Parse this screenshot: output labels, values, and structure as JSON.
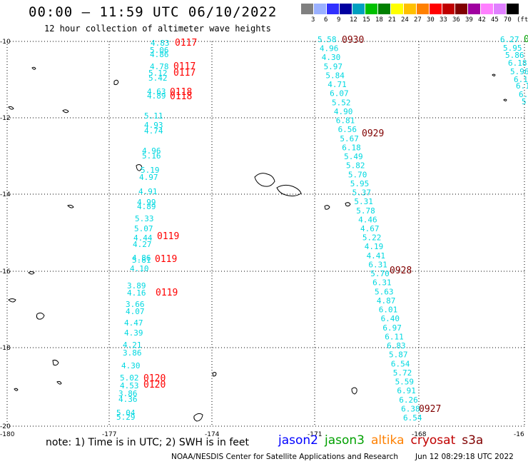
{
  "title": "00:00 – 11:59 UTC 06/10/2022",
  "subtitle": "12 hour collection of altimeter wave heights",
  "scale": {
    "colors": [
      "#808080",
      "#9ab0ff",
      "#3030ff",
      "#0000a0",
      "#00a0c0",
      "#00c000",
      "#008000",
      "#ffff00",
      "#ffc000",
      "#ff8000",
      "#ff0000",
      "#c00000",
      "#800000",
      "#a000a0",
      "#ff80ff",
      "#e080ff",
      "#000000"
    ],
    "labels": [
      "3",
      "6",
      "9",
      "12",
      "15",
      "18",
      "21",
      "24",
      "27",
      "30",
      "33",
      "36",
      "39",
      "42",
      "45",
      "70",
      "(ft)"
    ]
  },
  "map": {
    "lat_labels": [
      "-10",
      "-12",
      "-14",
      "-16",
      "-18",
      "-20"
    ],
    "lon_labels": [
      "-180",
      "-177",
      "-174",
      "-171",
      "-168",
      "-16"
    ]
  },
  "colors": {
    "cyan": "#00d8e0",
    "red": "#ff0000",
    "darkred": "#800000",
    "jason2": "#0000ff",
    "jason3": "#00a000",
    "altika": "#ff8000",
    "cryosat": "#c00000",
    "s3a": "#800000"
  },
  "tracks": {
    "west": [
      {
        "v": "4.83"
      },
      {
        "v": "5.06"
      },
      {
        "v": "4.86"
      },
      {
        "v": "4.78"
      },
      {
        "v": "5.12"
      },
      {
        "v": "5.42"
      },
      {
        "v": "4.63"
      },
      {
        "v": "4.89"
      },
      {
        "v": "5.11"
      },
      {
        "v": "4.93"
      },
      {
        "v": "4.74"
      },
      {
        "v": "4.96"
      },
      {
        "v": "5.16"
      },
      {
        "v": "5.19"
      },
      {
        "v": "4.97"
      },
      {
        "v": "4.91"
      },
      {
        "v": "4.99"
      },
      {
        "v": "4.89"
      },
      {
        "v": "5.33"
      },
      {
        "v": "5.07"
      },
      {
        "v": "4.44"
      },
      {
        "v": "4.27"
      },
      {
        "v": "4.86"
      },
      {
        "v": "5.81"
      },
      {
        "v": "4.10"
      },
      {
        "v": "3.89"
      },
      {
        "v": "4.16"
      },
      {
        "v": "3.66"
      },
      {
        "v": "4.07"
      },
      {
        "v": "4.47"
      },
      {
        "v": "4.39"
      },
      {
        "v": "4.21"
      },
      {
        "v": "3.86"
      },
      {
        "v": "4.30"
      },
      {
        "v": "5.02"
      },
      {
        "v": "4.53"
      },
      {
        "v": "3.86"
      },
      {
        "v": "4.36"
      },
      {
        "v": "5.04"
      },
      {
        "v": "5.29"
      }
    ],
    "middle": [
      {
        "v": "5.58"
      },
      {
        "v": "4.96"
      },
      {
        "v": "4.30"
      },
      {
        "v": "5.97"
      },
      {
        "v": "5.84"
      },
      {
        "v": "4.71"
      },
      {
        "v": "6.07"
      },
      {
        "v": "5.52"
      },
      {
        "v": "4.90"
      },
      {
        "v": "6.81"
      },
      {
        "v": "6.56"
      },
      {
        "v": "5.67"
      },
      {
        "v": "6.18"
      },
      {
        "v": "5.49"
      },
      {
        "v": "5.82"
      },
      {
        "v": "5.70"
      },
      {
        "v": "5.95"
      },
      {
        "v": "5.37"
      },
      {
        "v": "5.31"
      },
      {
        "v": "5.78"
      },
      {
        "v": "4.46"
      },
      {
        "v": "4.67"
      },
      {
        "v": "5.22"
      },
      {
        "v": "4.19"
      },
      {
        "v": "4.41"
      },
      {
        "v": "6.31"
      },
      {
        "v": "5.70"
      },
      {
        "v": "6.31"
      },
      {
        "v": "5.63"
      },
      {
        "v": "4.87"
      },
      {
        "v": "6.01"
      },
      {
        "v": "6.40"
      },
      {
        "v": "6.97"
      },
      {
        "v": "6.11"
      },
      {
        "v": "6.83"
      },
      {
        "v": "5.87"
      },
      {
        "v": "6.54"
      },
      {
        "v": "5.72"
      },
      {
        "v": "5.59"
      },
      {
        "v": "6.91"
      },
      {
        "v": "6.26"
      },
      {
        "v": "6.38"
      },
      {
        "v": "6.54"
      }
    ],
    "east": [
      {
        "v": "6.27"
      },
      {
        "v": "5.95"
      },
      {
        "v": "5.86"
      },
      {
        "v": "6.18"
      },
      {
        "v": "5.96"
      },
      {
        "v": "6.12"
      },
      {
        "v": "6.1"
      },
      {
        "v": "6.5"
      },
      {
        "v": "5.9"
      }
    ]
  },
  "times": [
    {
      "t": "0117",
      "c": "red"
    },
    {
      "t": "0117",
      "c": "red"
    },
    {
      "t": "0117",
      "c": "red"
    },
    {
      "t": "0118",
      "c": "red"
    },
    {
      "t": "0118",
      "c": "red"
    },
    {
      "t": "0119",
      "c": "red"
    },
    {
      "t": "0119",
      "c": "red"
    },
    {
      "t": "0119",
      "c": "red"
    },
    {
      "t": "0120",
      "c": "red"
    },
    {
      "t": "0120",
      "c": "red"
    },
    {
      "t": "0930",
      "c": "darkred"
    },
    {
      "t": "0929",
      "c": "darkred"
    },
    {
      "t": "0928",
      "c": "darkred"
    },
    {
      "t": "0927",
      "c": "darkred"
    },
    {
      "t": "0",
      "c": "green"
    }
  ],
  "note": "note: 1) Time is in UTC; 2) SWH is in feet",
  "legend": [
    "jason2",
    "jason3",
    "altika",
    "cryosat",
    "s3a"
  ],
  "credit": "NOAA/NESDIS Center for Satellite Applications and Research",
  "stamp": "Jun 12 08:29:18 UTC 2022"
}
